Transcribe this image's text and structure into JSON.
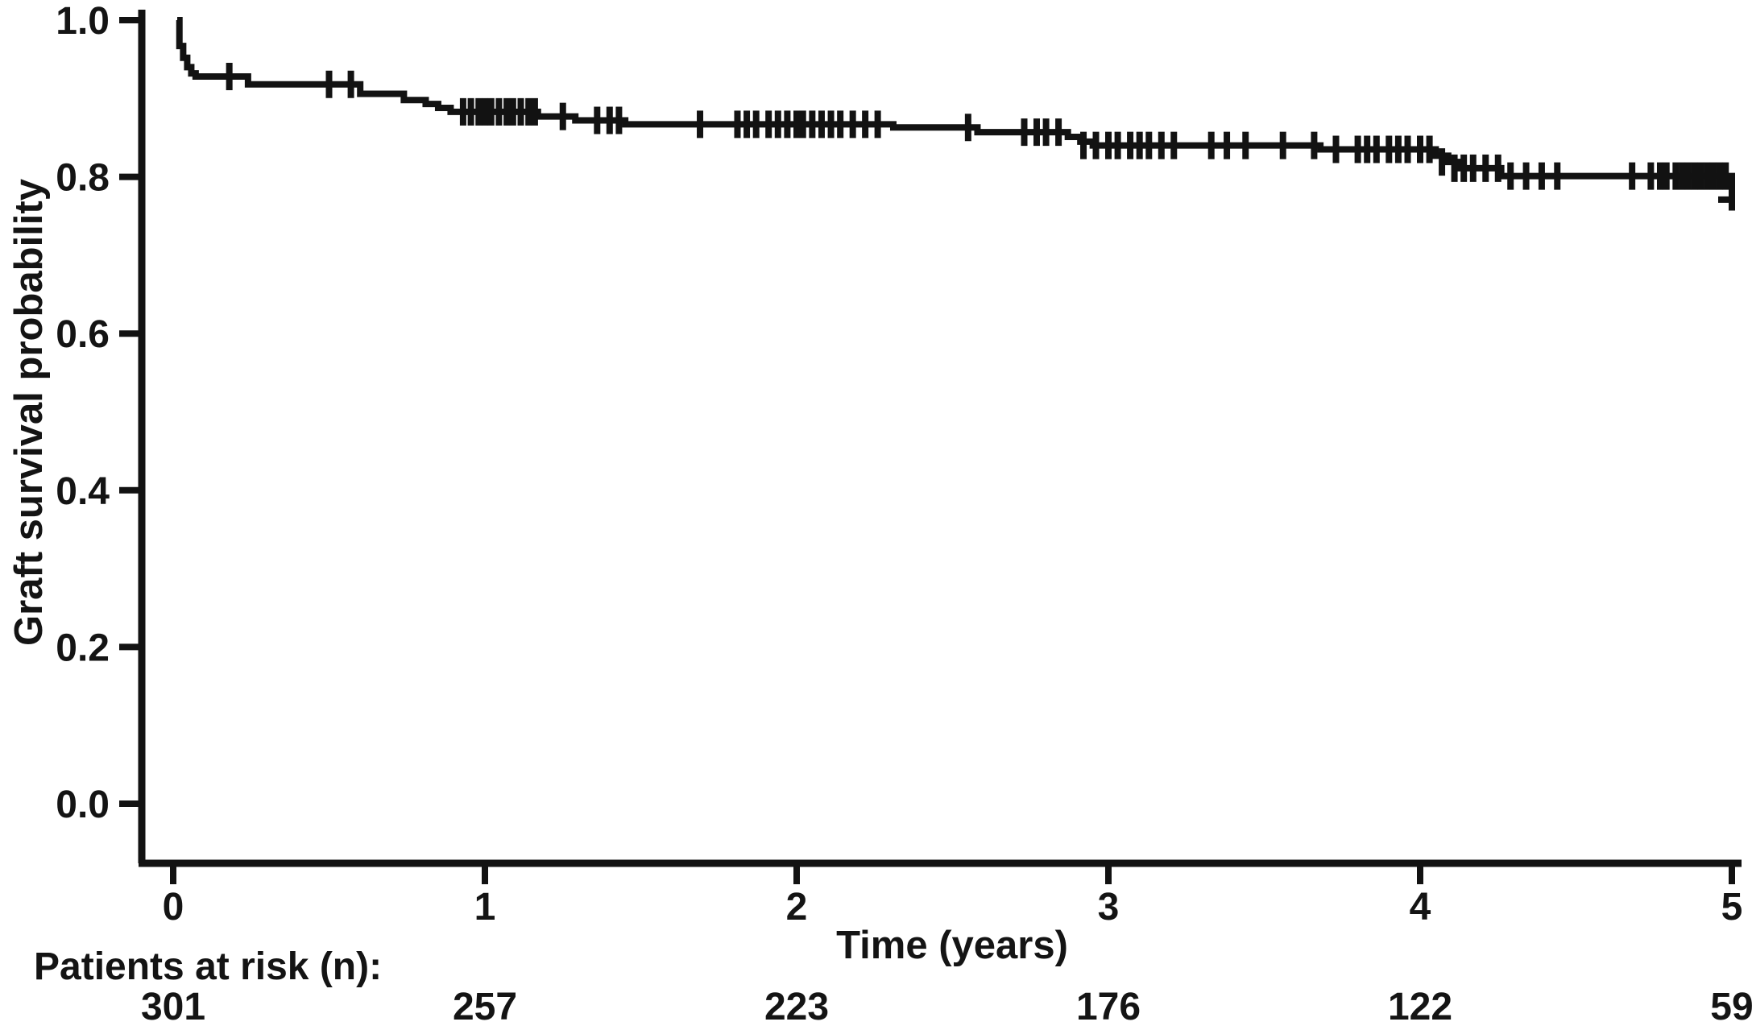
{
  "figure": {
    "background": "#ffffff",
    "ink_color": "#121212"
  },
  "chart_data": {
    "type": "line",
    "subtype": "kaplan-meier-step-curve",
    "title": "",
    "xlabel": "Time (years)",
    "ylabel": "Graft survival probability",
    "xlim": [
      0,
      5
    ],
    "ylim": [
      0.0,
      1.0
    ],
    "grid": false,
    "legend": null,
    "x_ticks": [
      "0",
      "1",
      "2",
      "3",
      "4",
      "5"
    ],
    "x_tick_values": [
      0,
      1,
      2,
      3,
      4,
      5
    ],
    "y_ticks": [
      "1.0",
      "0.8",
      "0.6",
      "0.4",
      "0.2",
      "0.0"
    ],
    "y_tick_values": [
      1.0,
      0.8,
      0.6,
      0.4,
      0.2,
      0.0
    ],
    "series": [
      {
        "name": "Graft survival probability",
        "color": "#121212",
        "steps": [
          [
            0.013,
            1.0
          ],
          [
            0.02,
            0.967
          ],
          [
            0.032,
            0.952
          ],
          [
            0.045,
            0.94
          ],
          [
            0.058,
            0.932
          ],
          [
            0.072,
            0.928
          ],
          [
            0.24,
            0.918
          ],
          [
            0.6,
            0.906
          ],
          [
            0.74,
            0.898
          ],
          [
            0.81,
            0.893
          ],
          [
            0.85,
            0.888
          ],
          [
            0.89,
            0.883
          ],
          [
            1.17,
            0.877
          ],
          [
            1.29,
            0.872
          ],
          [
            1.45,
            0.867
          ],
          [
            2.31,
            0.863
          ],
          [
            2.58,
            0.857
          ],
          [
            2.87,
            0.851
          ],
          [
            2.91,
            0.845
          ],
          [
            2.95,
            0.84
          ],
          [
            3.68,
            0.835
          ],
          [
            4.05,
            0.827
          ],
          [
            4.09,
            0.819
          ],
          [
            4.13,
            0.811
          ],
          [
            4.26,
            0.801
          ],
          [
            5.0,
            0.757
          ]
        ],
        "censor_marks": [
          [
            0.18,
            0.928
          ],
          [
            0.5,
            0.918
          ],
          [
            0.57,
            0.918
          ],
          [
            0.93,
            0.883
          ],
          [
            0.955,
            0.883
          ],
          [
            0.98,
            0.883
          ],
          [
            1.0,
            0.883
          ],
          [
            1.02,
            0.883
          ],
          [
            1.045,
            0.883
          ],
          [
            1.07,
            0.883
          ],
          [
            1.09,
            0.883
          ],
          [
            1.115,
            0.883
          ],
          [
            1.14,
            0.883
          ],
          [
            1.16,
            0.883
          ],
          [
            1.25,
            0.877
          ],
          [
            1.36,
            0.872
          ],
          [
            1.4,
            0.872
          ],
          [
            1.43,
            0.872
          ],
          [
            1.69,
            0.867
          ],
          [
            1.81,
            0.867
          ],
          [
            1.84,
            0.867
          ],
          [
            1.87,
            0.867
          ],
          [
            1.91,
            0.867
          ],
          [
            1.94,
            0.867
          ],
          [
            1.97,
            0.867
          ],
          [
            2.0,
            0.867
          ],
          [
            2.02,
            0.867
          ],
          [
            2.05,
            0.867
          ],
          [
            2.08,
            0.867
          ],
          [
            2.11,
            0.867
          ],
          [
            2.14,
            0.867
          ],
          [
            2.18,
            0.867
          ],
          [
            2.22,
            0.867
          ],
          [
            2.26,
            0.867
          ],
          [
            2.55,
            0.863
          ],
          [
            2.73,
            0.857
          ],
          [
            2.77,
            0.857
          ],
          [
            2.8,
            0.857
          ],
          [
            2.84,
            0.857
          ],
          [
            2.92,
            0.84
          ],
          [
            2.96,
            0.84
          ],
          [
            3.0,
            0.84
          ],
          [
            3.03,
            0.84
          ],
          [
            3.07,
            0.84
          ],
          [
            3.1,
            0.84
          ],
          [
            3.13,
            0.84
          ],
          [
            3.17,
            0.84
          ],
          [
            3.21,
            0.84
          ],
          [
            3.33,
            0.84
          ],
          [
            3.38,
            0.84
          ],
          [
            3.44,
            0.84
          ],
          [
            3.56,
            0.84
          ],
          [
            3.66,
            0.84
          ],
          [
            3.73,
            0.835
          ],
          [
            3.8,
            0.835
          ],
          [
            3.83,
            0.835
          ],
          [
            3.86,
            0.835
          ],
          [
            3.9,
            0.835
          ],
          [
            3.93,
            0.835
          ],
          [
            3.96,
            0.835
          ],
          [
            4.0,
            0.835
          ],
          [
            4.03,
            0.835
          ],
          [
            4.07,
            0.819
          ],
          [
            4.11,
            0.811
          ],
          [
            4.14,
            0.811
          ],
          [
            4.17,
            0.811
          ],
          [
            4.21,
            0.811
          ],
          [
            4.25,
            0.811
          ],
          [
            4.29,
            0.801
          ],
          [
            4.34,
            0.801
          ],
          [
            4.39,
            0.801
          ],
          [
            4.44,
            0.801
          ],
          [
            4.68,
            0.801
          ],
          [
            4.74,
            0.801
          ],
          [
            4.77,
            0.801
          ],
          [
            4.79,
            0.801
          ],
          [
            4.82,
            0.801
          ],
          [
            4.84,
            0.801
          ],
          [
            4.86,
            0.801
          ],
          [
            4.88,
            0.801
          ],
          [
            4.9,
            0.801
          ],
          [
            4.92,
            0.801
          ],
          [
            4.94,
            0.801
          ],
          [
            4.96,
            0.801
          ],
          [
            4.98,
            0.801
          ]
        ],
        "end_censor": {
          "time": 5.0,
          "value": 0.771,
          "orientation": "horizontal"
        }
      }
    ],
    "at_risk": {
      "label": "Patients at risk (n):",
      "times": [
        0,
        1,
        2,
        3,
        4,
        5
      ],
      "counts": [
        "301",
        "257",
        "223",
        "176",
        "122",
        "59"
      ]
    }
  }
}
